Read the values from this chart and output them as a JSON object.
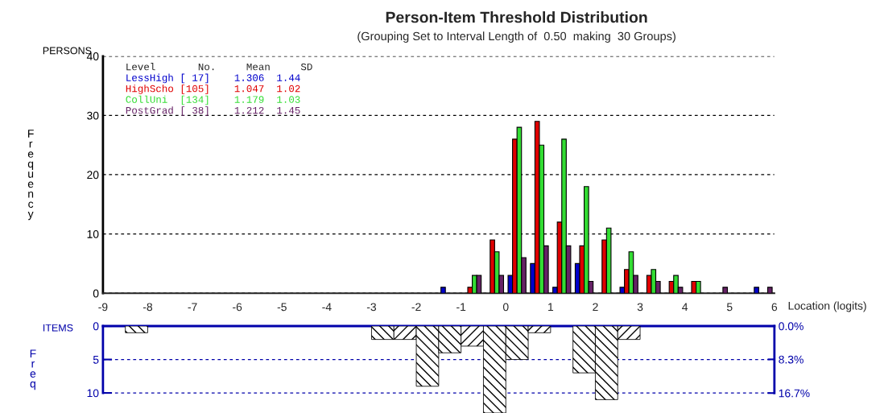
{
  "chart_data": [
    {
      "type": "bar",
      "title": "Person-Item Threshold Distribution",
      "subtitle": "(Grouping Set to Interval Length of  0.50  making  30 Groups)",
      "xlabel": "Location (logits)",
      "ylabel": "Frequency",
      "legend_title": "Level       No.     Mean     SD",
      "annotations": [
        "PERSONS"
      ],
      "x": [
        -1.25,
        -0.75,
        -0.25,
        0.25,
        0.75,
        1.25,
        1.75,
        2.25,
        2.75,
        3.25,
        3.75,
        4.25,
        4.75,
        5.25,
        5.75
      ],
      "series": [
        {
          "name": "LessHigh [ 17]    1.306  1.44",
          "color": "#0000cc",
          "values": [
            1,
            null,
            null,
            3,
            5,
            1,
            5,
            null,
            1,
            null,
            null,
            null,
            null,
            null,
            1
          ]
        },
        {
          "name": "HighScho [105]    1.047  1.02",
          "color": "#e00000",
          "values": [
            null,
            1,
            9,
            26,
            29,
            12,
            8,
            9,
            4,
            3,
            2,
            2,
            null,
            null,
            null
          ]
        },
        {
          "name": "CollUni  [134]    1.179  1.03",
          "color": "#33dd33",
          "values": [
            null,
            3,
            7,
            28,
            25,
            26,
            18,
            11,
            7,
            4,
            3,
            2,
            null,
            null,
            null
          ]
        },
        {
          "name": "PostGrad [ 38]    1.212  1.45",
          "color": "#662266",
          "values": [
            null,
            3,
            3,
            6,
            8,
            8,
            2,
            null,
            3,
            2,
            1,
            null,
            1,
            null,
            1
          ]
        }
      ],
      "xlim": [
        -9,
        6
      ],
      "xticks": [
        -9,
        -8,
        -7,
        -6,
        -5,
        -4,
        -3,
        -2,
        -1,
        0,
        1,
        2,
        3,
        4,
        5,
        6
      ],
      "ylim": [
        0,
        40
      ],
      "yticks": [
        0,
        10,
        20,
        30,
        40
      ],
      "grid": "y",
      "legend": "top left"
    },
    {
      "type": "bar",
      "ylabel": "Freq",
      "annotations": [
        "ITEMS"
      ],
      "x": [
        -8.25,
        -7.75,
        -7.25,
        -6.75,
        -6.25,
        -5.75,
        -5.25,
        -4.75,
        -4.25,
        -3.75,
        -3.25,
        -2.75,
        -2.25,
        -1.75,
        -1.25,
        -0.75,
        -0.25,
        0.25,
        0.75,
        1.25,
        1.75,
        2.25,
        2.75
      ],
      "series": [
        {
          "color": "#000000",
          "values": [
            1,
            null,
            null,
            null,
            null,
            null,
            null,
            null,
            null,
            null,
            null,
            2,
            2,
            9,
            4,
            3,
            13,
            5,
            1,
            null,
            7,
            11,
            2
          ]
        }
      ],
      "xlim": [
        -9,
        6
      ],
      "ylim": [
        13,
        0
      ],
      "yticks": [
        0,
        5,
        10
      ],
      "y2lim": [
        21.67,
        0
      ],
      "y2ticks": [
        {
          "value": 0,
          "label": "0.0%"
        },
        {
          "value": 8.3,
          "label": "8.3%"
        },
        {
          "value": 16.7,
          "label": "16.7%"
        }
      ],
      "grid": "y",
      "tick_labels": "y"
    }
  ]
}
